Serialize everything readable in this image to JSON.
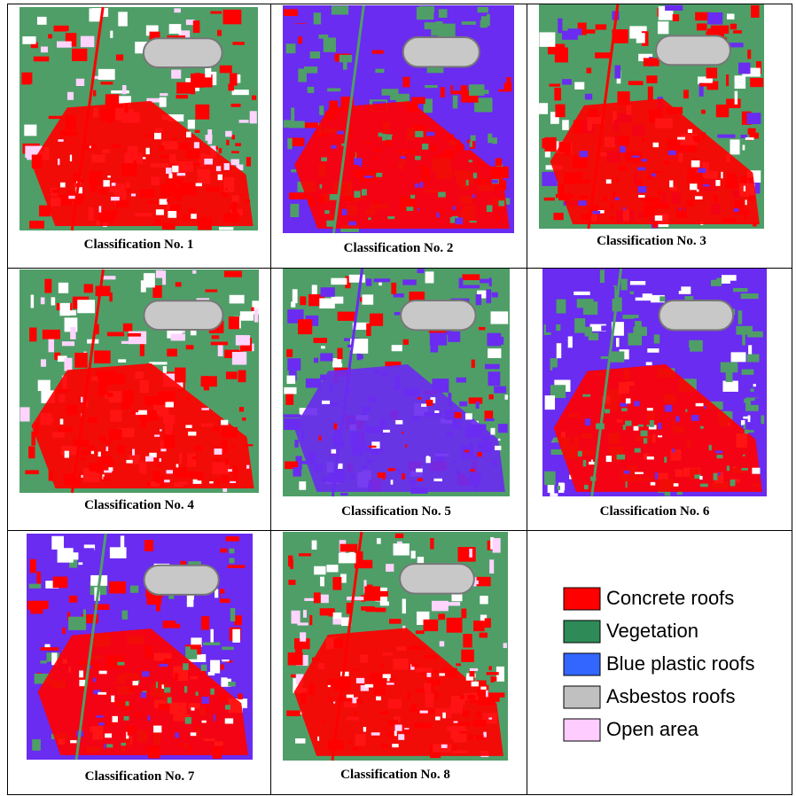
{
  "panels": [
    {
      "caption": "Classification No. 1"
    },
    {
      "caption": "Classification No. 2"
    },
    {
      "caption": "Classification No. 3"
    },
    {
      "caption": "Classification No. 4"
    },
    {
      "caption": "Classification No. 5"
    },
    {
      "caption": "Classification No. 6"
    },
    {
      "caption": "Classification No. 7"
    },
    {
      "caption": "Classification No. 8"
    }
  ],
  "legend": [
    {
      "label": "Concrete roofs",
      "color": "#ff0000"
    },
    {
      "label": "Vegetation",
      "color": "#2e8b57"
    },
    {
      "label": "Blue plastic roofs",
      "color": "#3366ff"
    },
    {
      "label": "Asbestos roofs",
      "color": "#c0c0c0"
    },
    {
      "label": "Open area",
      "color": "#ffccff"
    }
  ]
}
